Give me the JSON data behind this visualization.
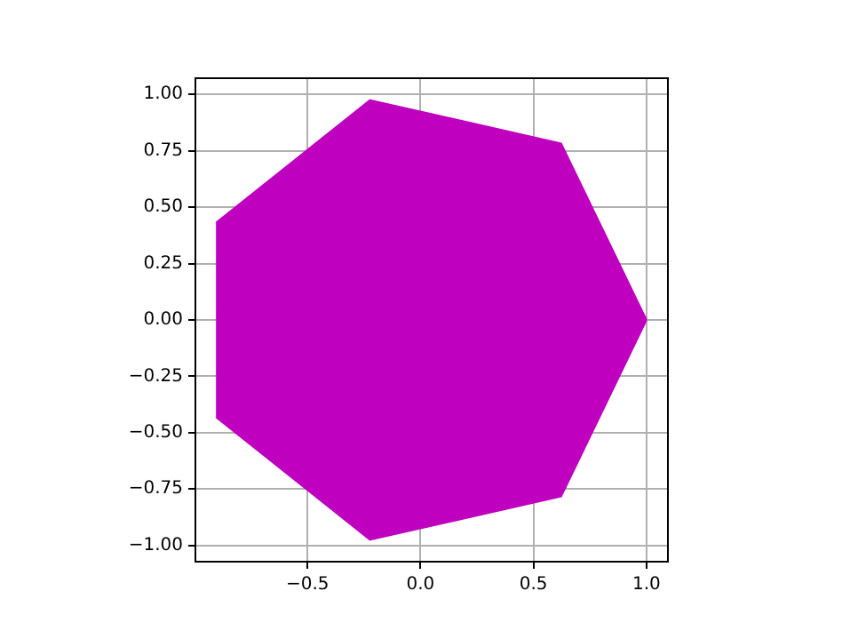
{
  "chart_data": {
    "type": "area",
    "color": "#bf00bf",
    "x": [
      1,
      0.623,
      -0.223,
      -0.901,
      -0.901,
      -0.223,
      0.623,
      1
    ],
    "values": [
      0,
      0.782,
      0.975,
      0.434,
      -0.434,
      -0.975,
      -0.782,
      0
    ],
    "xlim": [
      -0.996,
      1.095
    ],
    "ylim": [
      -1.072,
      1.072
    ],
    "xticks": [
      {
        "value": -0.5,
        "label": "−0.5"
      },
      {
        "value": 0,
        "label": "0.0"
      },
      {
        "value": 0.5,
        "label": "0.5"
      },
      {
        "value": 1,
        "label": "1.0"
      }
    ],
    "yticks": [
      {
        "value": -1,
        "label": "−1.00"
      },
      {
        "value": -0.75,
        "label": "−0.75"
      },
      {
        "value": -0.5,
        "label": "−0.50"
      },
      {
        "value": -0.25,
        "label": "−0.25"
      },
      {
        "value": 0,
        "label": "0.00"
      },
      {
        "value": 0.25,
        "label": "0.25"
      },
      {
        "value": 0.5,
        "label": "0.50"
      },
      {
        "value": 0.75,
        "label": "0.75"
      },
      {
        "value": 1,
        "label": "1.00"
      }
    ],
    "grid": true
  }
}
